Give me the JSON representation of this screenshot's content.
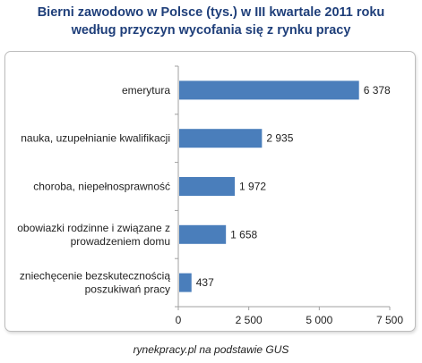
{
  "title_line1": "Bierni zawodowo w Polsce (tys.) w III kwartale 2011 roku",
  "title_line2": "według przyczyn wycofania się z rynku pracy",
  "source": "rynekpracy.pl na podstawie GUS",
  "colors": {
    "bar": "#4a7ebb",
    "title": "#1f3f7a",
    "axis": "#a0a0a0"
  },
  "chart_data": {
    "type": "bar",
    "orientation": "horizontal",
    "categories": [
      [
        "emerytura"
      ],
      [
        "nauka, uzupełnianie kwalifikacji"
      ],
      [
        "choroba, niepełnosprawność"
      ],
      [
        "obowiazki rodzinne i związane z",
        "prowadzeniem domu"
      ],
      [
        "zniechęcenie bezskutecznością",
        "poszukiwań pracy"
      ]
    ],
    "values": [
      6378,
      2935,
      1972,
      1658,
      437
    ],
    "value_labels": [
      "6 378",
      "2 935",
      "1 972",
      "1 658",
      "437"
    ],
    "xlim": [
      0,
      7500
    ],
    "x_ticks": [
      0,
      2500,
      5000,
      7500
    ],
    "x_tick_labels": [
      "0",
      "2 500",
      "5 000",
      "7 500"
    ],
    "grid": false,
    "legend": "none"
  }
}
